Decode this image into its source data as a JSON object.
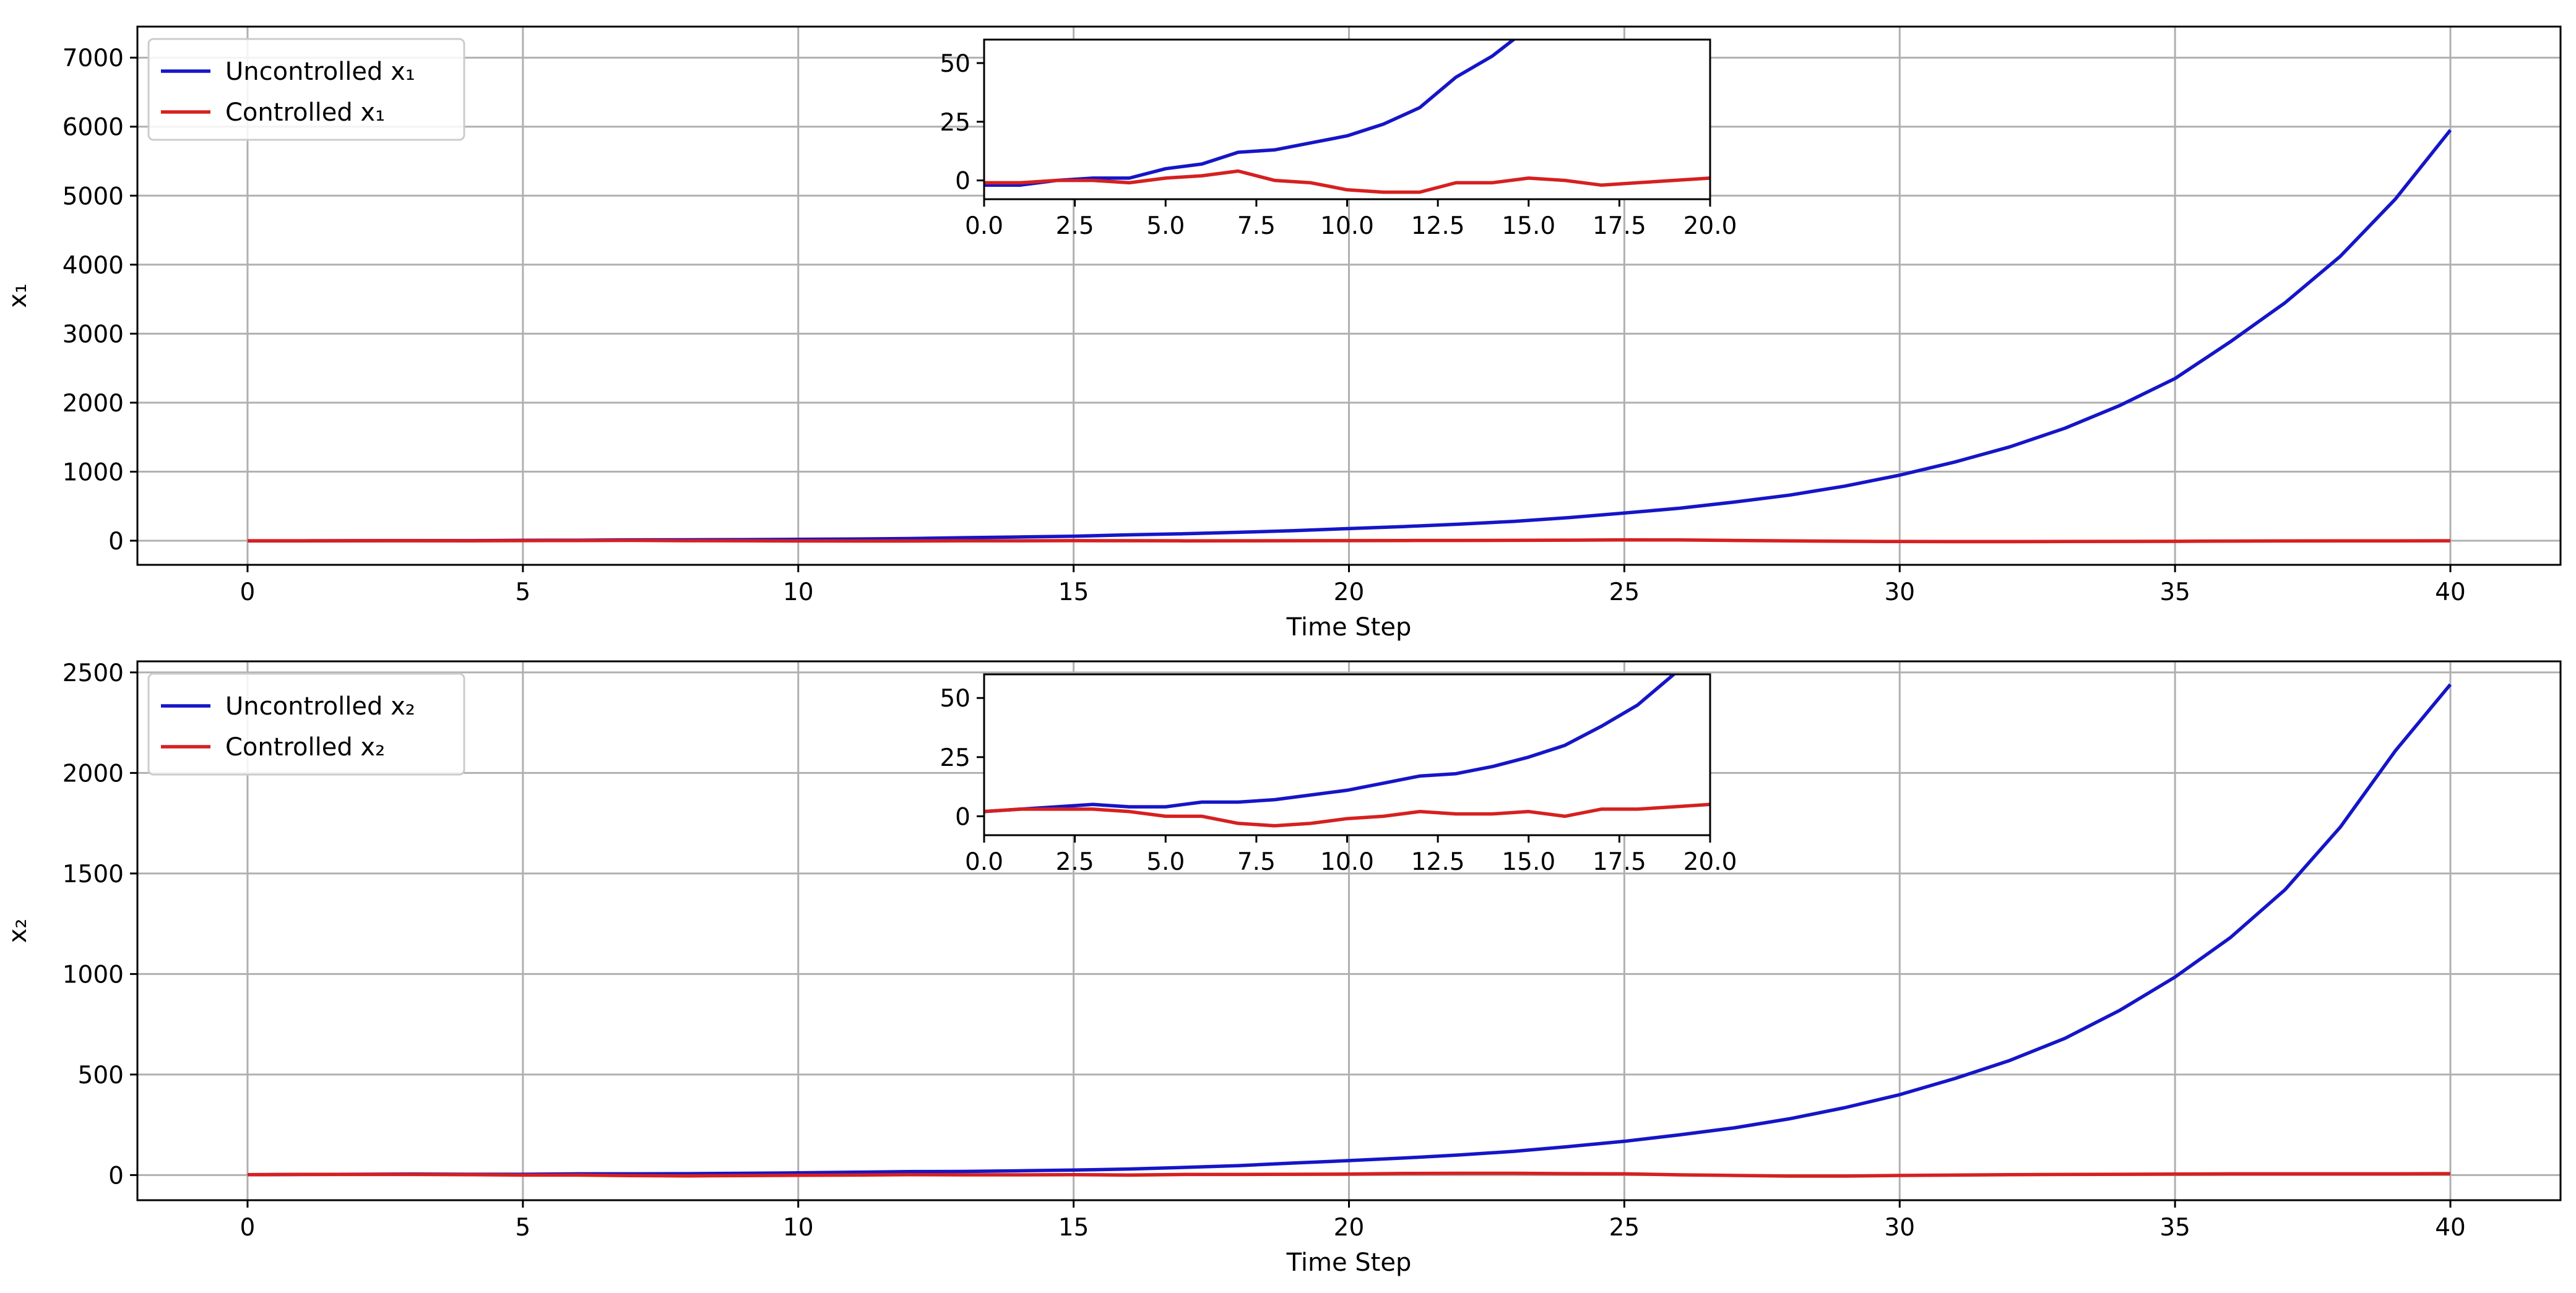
{
  "colors": {
    "uncontrolled": "#1515c8",
    "controlled": "#d62020",
    "grid": "#b0b0b0",
    "legend_border": "#cccccc"
  },
  "chart_data": [
    {
      "type": "line",
      "xlabel": "Time Step",
      "ylabel": "x₁",
      "xlim": [
        -2,
        42
      ],
      "ylim": [
        -350,
        7450
      ],
      "xticks": [
        0,
        5,
        10,
        15,
        20,
        25,
        30,
        35,
        40
      ],
      "yticks": [
        0,
        1000,
        2000,
        3000,
        4000,
        5000,
        6000,
        7000
      ],
      "grid": true,
      "legend_position": "top-left",
      "x": [
        0,
        1,
        2,
        3,
        4,
        5,
        6,
        7,
        8,
        9,
        10,
        11,
        12,
        13,
        14,
        15,
        16,
        17,
        18,
        19,
        20,
        21,
        22,
        23,
        24,
        25,
        26,
        27,
        28,
        29,
        30,
        31,
        32,
        33,
        34,
        35,
        36,
        37,
        38,
        39,
        40
      ],
      "series": [
        {
          "name": "Uncontrolled x₁",
          "color_key": "uncontrolled",
          "values": [
            -2,
            -2,
            0,
            1,
            1,
            5,
            7,
            12,
            13,
            16,
            19,
            24,
            31,
            44,
            53,
            65,
            85,
            100,
            122,
            145,
            175,
            205,
            240,
            280,
            335,
            400,
            470,
            560,
            660,
            790,
            950,
            1140,
            1360,
            1630,
            1960,
            2350,
            2880,
            3450,
            4120,
            4950,
            5950
          ]
        },
        {
          "name": "Controlled x₁",
          "color_key": "controlled",
          "values": [
            -1,
            -1,
            0,
            0,
            -1,
            1,
            2,
            4,
            0,
            -1,
            -4,
            -5,
            -5,
            -1,
            -1,
            1,
            0,
            -2,
            -1,
            0,
            1,
            2,
            3,
            5,
            8,
            12,
            10,
            3,
            -3,
            -8,
            -12,
            -14,
            -14,
            -12,
            -10,
            -9,
            -6,
            -4,
            -3,
            -2,
            -1
          ]
        }
      ],
      "inset": {
        "xlim": [
          0,
          20
        ],
        "ylim": [
          -8,
          60
        ],
        "xticks": [
          0.0,
          2.5,
          5.0,
          7.5,
          10.0,
          12.5,
          15.0,
          17.5,
          20.0
        ],
        "xtick_labels": [
          "0.0",
          "2.5",
          "5.0",
          "7.5",
          "10.0",
          "12.5",
          "15.0",
          "17.5",
          "20.0"
        ],
        "yticks": [
          0,
          25,
          50
        ],
        "ytick_labels": [
          "0",
          "25",
          "50"
        ]
      }
    },
    {
      "type": "line",
      "xlabel": "Time Step",
      "ylabel": "x₂",
      "xlim": [
        -2,
        42
      ],
      "ylim": [
        -125,
        2555
      ],
      "xticks": [
        0,
        5,
        10,
        15,
        20,
        25,
        30,
        35,
        40
      ],
      "yticks": [
        0,
        500,
        1000,
        1500,
        2000,
        2500
      ],
      "grid": true,
      "legend_position": "top-left",
      "x": [
        0,
        1,
        2,
        3,
        4,
        5,
        6,
        7,
        8,
        9,
        10,
        11,
        12,
        13,
        14,
        15,
        16,
        17,
        18,
        19,
        20,
        21,
        22,
        23,
        24,
        25,
        26,
        27,
        28,
        29,
        30,
        31,
        32,
        33,
        34,
        35,
        36,
        37,
        38,
        39,
        40
      ],
      "series": [
        {
          "name": "Uncontrolled x₂",
          "color_key": "uncontrolled",
          "values": [
            2,
            3,
            4,
            5,
            4,
            4,
            6,
            6,
            7,
            9,
            11,
            14,
            17,
            18,
            21,
            25,
            30,
            38,
            47,
            60,
            72,
            85,
            100,
            118,
            142,
            168,
            200,
            235,
            280,
            335,
            400,
            480,
            570,
            680,
            820,
            985,
            1180,
            1420,
            1730,
            2110,
            2440
          ]
        },
        {
          "name": "Controlled x₂",
          "color_key": "controlled",
          "values": [
            2,
            3,
            3,
            3,
            2,
            0,
            0,
            -3,
            -4,
            -3,
            -1,
            0,
            2,
            1,
            1,
            2,
            0,
            3,
            3,
            4,
            5,
            8,
            9,
            9,
            7,
            6,
            1,
            -2,
            -5,
            -5,
            -2,
            0,
            2,
            3,
            4,
            5,
            6,
            6,
            6,
            6,
            7
          ]
        }
      ],
      "inset": {
        "xlim": [
          0,
          20
        ],
        "ylim": [
          -8,
          60
        ],
        "xticks": [
          0.0,
          2.5,
          5.0,
          7.5,
          10.0,
          12.5,
          15.0,
          17.5,
          20.0
        ],
        "xtick_labels": [
          "0.0",
          "2.5",
          "5.0",
          "7.5",
          "10.0",
          "12.5",
          "15.0",
          "17.5",
          "20.0"
        ],
        "yticks": [
          0,
          25,
          50
        ],
        "ytick_labels": [
          "0",
          "25",
          "50"
        ]
      }
    }
  ]
}
